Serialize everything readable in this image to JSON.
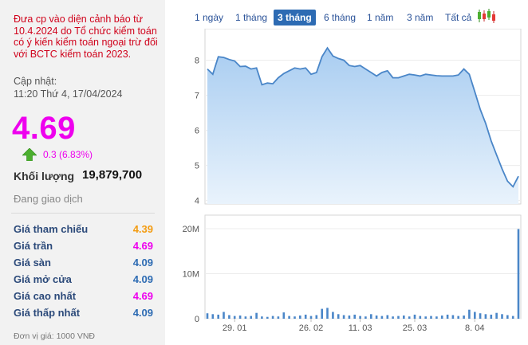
{
  "warning_text": "Đưa cp vào diện cảnh báo từ 10.4.2024 do Tổ chức kiểm toán có ý kiến kiểm toán ngoại trừ đối với BCTC kiểm toán 2023.",
  "update_label": "Cập nhật:",
  "update_time": "11:20 Thứ 4, 17/04/2024",
  "price": "4.69",
  "change": "0.3 (6.83%)",
  "volume_label": "Khối lượng",
  "volume_value": "19,879,700",
  "trading_status": "Đang giao dịch",
  "rows": [
    {
      "label": "Giá tham chiếu",
      "value": "4.39",
      "color": "#f39c12"
    },
    {
      "label": "Giá trần",
      "value": "4.69",
      "color": "#ee00ee"
    },
    {
      "label": "Giá sàn",
      "value": "4.09",
      "color": "#2d6bb3"
    },
    {
      "label": "Giá mở cửa",
      "value": "4.09",
      "color": "#2d6bb3"
    },
    {
      "label": "Giá cao nhất",
      "value": "4.69",
      "color": "#ee00ee"
    },
    {
      "label": "Giá thấp nhất",
      "value": "4.09",
      "color": "#2d6bb3"
    }
  ],
  "unit_text": "Đơn vị giá: 1000 VNĐ",
  "tabs": [
    {
      "label": "1 ngày",
      "active": false
    },
    {
      "label": "1 tháng",
      "active": false
    },
    {
      "label": "3 tháng",
      "active": true
    },
    {
      "label": "6 tháng",
      "active": false
    },
    {
      "label": "1 năm",
      "active": false
    },
    {
      "label": "3 năm",
      "active": false
    },
    {
      "label": "Tất cả",
      "active": false
    }
  ],
  "chart_data": {
    "type": "area",
    "price_axis": {
      "ticks": [
        "8",
        "7",
        "6",
        "5",
        "4"
      ],
      "ylim": [
        3.9,
        8.9
      ]
    },
    "volume_axis": {
      "ticks": [
        "20M",
        "10M",
        "0"
      ],
      "ylim": [
        0,
        23
      ]
    },
    "x_ticks": [
      "29. 01",
      "26. 02",
      "11. 03",
      "25. 03",
      "8. 04"
    ],
    "x_tick_index": [
      5,
      19,
      28,
      38,
      49
    ],
    "price_series": [
      7.75,
      7.6,
      8.1,
      8.08,
      8.02,
      7.98,
      7.82,
      7.83,
      7.75,
      7.78,
      7.3,
      7.35,
      7.33,
      7.5,
      7.62,
      7.7,
      7.78,
      7.75,
      7.78,
      7.6,
      7.65,
      8.1,
      8.35,
      8.12,
      8.05,
      8.0,
      7.85,
      7.82,
      7.85,
      7.75,
      7.65,
      7.55,
      7.65,
      7.7,
      7.5,
      7.5,
      7.55,
      7.6,
      7.58,
      7.55,
      7.6,
      7.58,
      7.56,
      7.55,
      7.55,
      7.55,
      7.58,
      7.75,
      7.6,
      7.1,
      6.6,
      6.2,
      5.7,
      5.3,
      4.9,
      4.55,
      4.39,
      4.69
    ],
    "volume_series": [
      1.2,
      1.0,
      0.9,
      1.5,
      0.8,
      0.6,
      0.7,
      0.5,
      0.6,
      1.3,
      0.5,
      0.4,
      0.6,
      0.5,
      1.4,
      0.6,
      0.5,
      0.7,
      0.9,
      0.6,
      0.8,
      2.2,
      2.4,
      1.5,
      1.0,
      0.8,
      0.7,
      0.9,
      0.6,
      0.5,
      1.0,
      0.7,
      0.6,
      0.8,
      0.5,
      0.6,
      0.7,
      0.5,
      0.9,
      0.6,
      0.5,
      0.6,
      0.5,
      0.7,
      0.9,
      0.8,
      0.6,
      0.7,
      2.0,
      1.5,
      1.2,
      1.0,
      0.9,
      1.3,
      1.0,
      0.8,
      0.6,
      19.9
    ]
  }
}
